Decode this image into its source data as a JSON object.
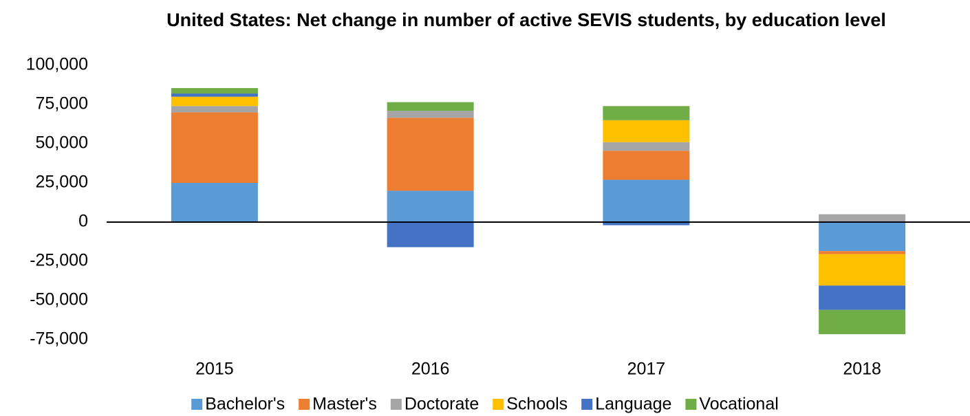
{
  "chart_data": {
    "type": "bar",
    "stacked": true,
    "title": "United States: Net change in number of active SEVIS students, by education level",
    "categories": [
      "2015",
      "2016",
      "2017",
      "2018"
    ],
    "series": [
      {
        "name": "Bachelor's",
        "color": "#5b9bd5",
        "values": [
          25000,
          20000,
          27000,
          -18500
        ]
      },
      {
        "name": "Master's",
        "color": "#ed7d31",
        "values": [
          45000,
          46500,
          18500,
          -2000
        ]
      },
      {
        "name": "Doctorate",
        "color": "#a5a5a5",
        "values": [
          4000,
          4500,
          5500,
          5000
        ]
      },
      {
        "name": "Schools",
        "color": "#ffc000",
        "values": [
          6000,
          0,
          14000,
          -20000
        ]
      },
      {
        "name": "Language",
        "color": "#4472c4",
        "values": [
          2000,
          -16000,
          -2000,
          -15500
        ]
      },
      {
        "name": "Vocational",
        "color": "#70ad47",
        "values": [
          3500,
          5500,
          9000,
          -15500
        ]
      }
    ],
    "ylim": [
      -75000,
      100000
    ],
    "yticks": [
      {
        "value": -75000,
        "label": "-75,000"
      },
      {
        "value": -50000,
        "label": "-50,000"
      },
      {
        "value": -25000,
        "label": "-25,000"
      },
      0,
      {
        "value": 25000,
        "label": "25,000"
      },
      {
        "value": 50000,
        "label": "50,000"
      },
      {
        "value": 75000,
        "label": "75,000"
      },
      {
        "value": 100000,
        "label": "100,000"
      }
    ],
    "grid": false,
    "legend": "bottom"
  }
}
